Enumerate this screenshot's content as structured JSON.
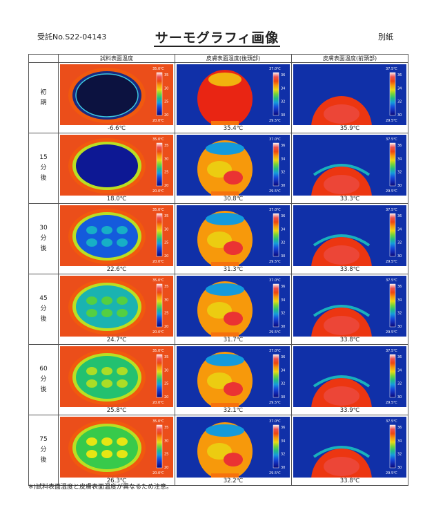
{
  "header": {
    "receipt": "受託No.S22-04143",
    "title": "サーモグラフィ画像",
    "attachment": "別紙"
  },
  "columns": [
    "試料表面温度",
    "皮膚表面温度(後頭部)",
    "皮膚表面温度(前頭部)"
  ],
  "rows": [
    {
      "label": [
        "初",
        "期"
      ],
      "temps": [
        "-6.6℃",
        "35.4℃",
        "35.9℃"
      ],
      "level": 0
    },
    {
      "label": [
        "15",
        "分",
        "後"
      ],
      "temps": [
        "18.0℃",
        "30.8℃",
        "33.3℃"
      ],
      "level": 1
    },
    {
      "label": [
        "30",
        "分",
        "後"
      ],
      "temps": [
        "22.6℃",
        "31.3℃",
        "33.8℃"
      ],
      "level": 2
    },
    {
      "label": [
        "45",
        "分",
        "後"
      ],
      "temps": [
        "24.7℃",
        "31.7℃",
        "33.8℃"
      ],
      "level": 3
    },
    {
      "label": [
        "60",
        "分",
        "後"
      ],
      "temps": [
        "25.8℃",
        "32.1℃",
        "33.9℃"
      ],
      "level": 4
    },
    {
      "label": [
        "75",
        "分",
        "後"
      ],
      "temps": [
        "26.3℃",
        "32.2℃",
        "33.8℃"
      ],
      "level": 5
    }
  ],
  "colorbars": [
    {
      "max": "35.0℃",
      "min": "20.0℃",
      "ticks": [
        "35",
        "30",
        "25",
        "20"
      ]
    },
    {
      "max": "37.0℃",
      "min": "29.5℃",
      "ticks": [
        "36",
        "34",
        "32",
        "30"
      ]
    },
    {
      "max": "37.5℃",
      "min": "29.5℃",
      "ticks": [
        "36",
        "34",
        "32",
        "30"
      ]
    }
  ],
  "note": "※)試料表面温度と皮膚表面温度が異なるため注意。"
}
